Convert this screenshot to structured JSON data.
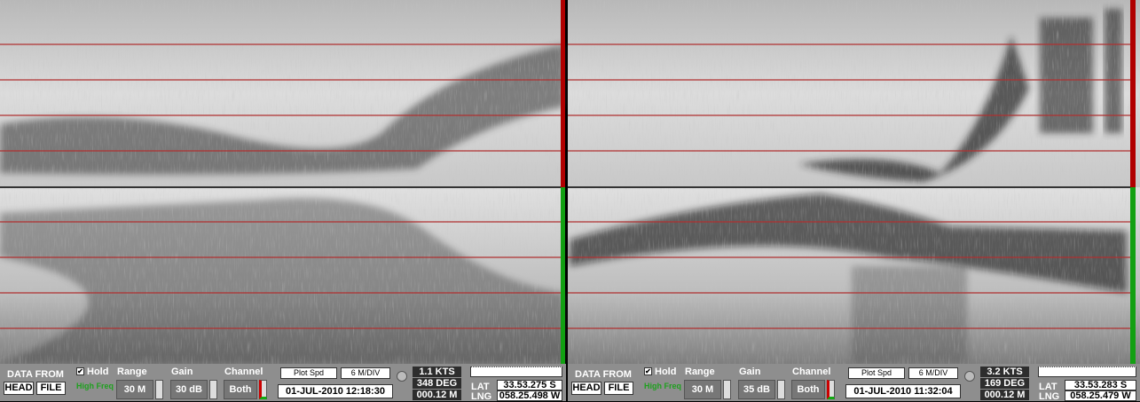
{
  "panels": [
    {
      "data_from": "DATA FROM",
      "head": "HEAD",
      "file": "FILE",
      "hold": "Hold",
      "freq": "High Freq",
      "range_label": "Range",
      "range": "30 M",
      "gain_label": "Gain",
      "gain": "30 dB",
      "channel_label": "Channel",
      "channel": "Both",
      "plot_spd": "Plot Spd",
      "div": "6 M/DIV",
      "datetime": "01-JUL-2010  12:18:30",
      "speed": "1.1 KTS",
      "heading": "348 DEG",
      "depth": "000.12 M",
      "lat_label": "LAT",
      "lng_label": "LNG",
      "lat": "33.53.275 S",
      "lng": "058.25.498 W"
    },
    {
      "data_from": "DATA FROM",
      "head": "HEAD",
      "file": "FILE",
      "hold": "Hold",
      "freq": "High Freq",
      "range_label": "Range",
      "range": "30 M",
      "gain_label": "Gain",
      "gain": "35 dB",
      "channel_label": "Channel",
      "channel": "Both",
      "plot_spd": "Plot Spd",
      "div": "6 M/DIV",
      "datetime": "01-JUL-2010  11:32:04",
      "speed": "3.2 KTS",
      "heading": "169 DEG",
      "depth": "000.12 M",
      "lat_label": "LAT",
      "lng_label": "LNG",
      "lat": "33.53.283 S",
      "lng": "058.25.479 W"
    }
  ]
}
